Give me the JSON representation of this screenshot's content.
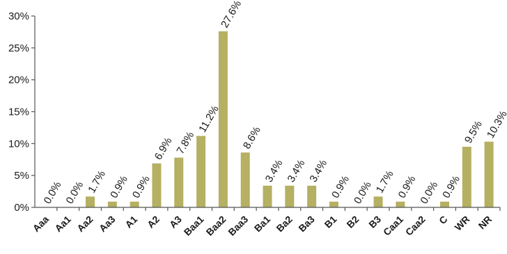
{
  "chart_data": {
    "type": "bar",
    "categories": [
      "Aaa",
      "Aa1",
      "Aa2",
      "Aa3",
      "A1",
      "A2",
      "A3",
      "Baa1",
      "Baa2",
      "Baa3",
      "Ba1",
      "Ba2",
      "Ba3",
      "B1",
      "B2",
      "B3",
      "Caa1",
      "Caa2",
      "C",
      "WR",
      "NR"
    ],
    "values": [
      0.0,
      0.0,
      1.7,
      0.9,
      0.9,
      6.9,
      7.8,
      11.2,
      27.6,
      8.6,
      3.4,
      3.4,
      3.4,
      0.9,
      0.0,
      1.7,
      0.9,
      0.0,
      0.9,
      9.5,
      10.3
    ],
    "data_labels": [
      "0.0%",
      "0.0%",
      "1.7%",
      "0.9%",
      "0.9%",
      "6.9%",
      "7.8%",
      "11.2%",
      "27.6%",
      "8.6%",
      "3.4%",
      "3.4%",
      "3.4%",
      "0.9%",
      "0.0%",
      "1.7%",
      "0.9%",
      "0.0%",
      "0.9%",
      "9.5%",
      "10.3%"
    ],
    "yticks": [
      "0%",
      "5%",
      "10%",
      "15%",
      "20%",
      "25%",
      "30%"
    ],
    "ylim": [
      0,
      30
    ],
    "title": "",
    "xlabel": "",
    "ylabel": "",
    "grid": false,
    "bar_color": "#b5b062"
  }
}
